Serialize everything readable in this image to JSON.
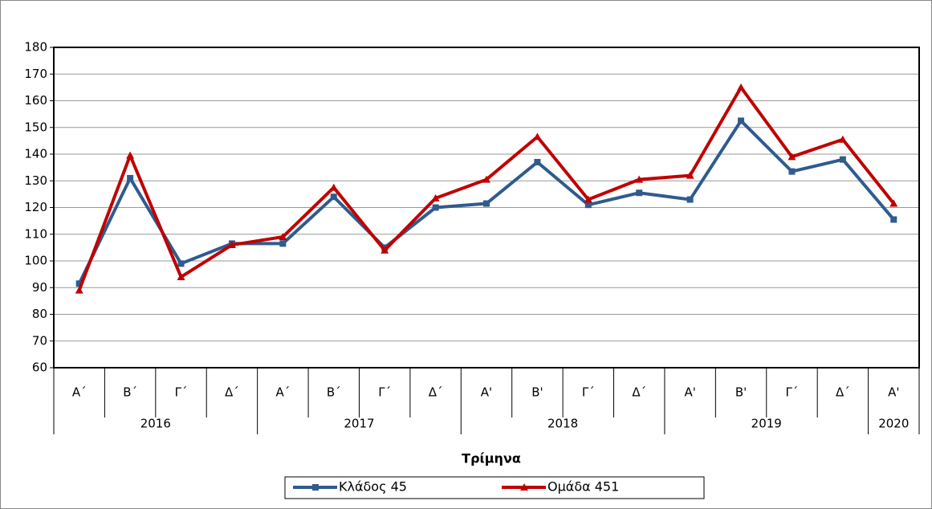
{
  "chart_data": {
    "type": "line",
    "x_title": "Τρίμηνα",
    "categories": [
      "Α΄",
      "Β΄",
      "Γ΄",
      "Δ΄",
      "Α΄",
      "Β΄",
      "Γ΄",
      "Δ΄",
      "Α'",
      "Β'",
      "Γ΄",
      "Δ΄",
      "Α'",
      "Β'",
      "Γ΄",
      "Δ΄",
      "Α'"
    ],
    "year_groups": [
      {
        "label": "2016",
        "count": 4
      },
      {
        "label": "2017",
        "count": 4
      },
      {
        "label": "2018",
        "count": 4
      },
      {
        "label": "2019",
        "count": 4
      },
      {
        "label": "2020",
        "count": 1
      }
    ],
    "series": [
      {
        "name": "Κλάδος 45",
        "color": "#2f5b8e",
        "marker": "square",
        "values": [
          91.5,
          131,
          99,
          106.5,
          106.5,
          124,
          105,
          120,
          121.5,
          137,
          121,
          125.5,
          123,
          152.5,
          133.5,
          138,
          115.5
        ]
      },
      {
        "name": "Ομάδα 451",
        "color": "#c00000",
        "marker": "triangle",
        "values": [
          89,
          139.5,
          94,
          106,
          109,
          127.5,
          104,
          123.5,
          130.5,
          146.5,
          123,
          130.5,
          132,
          165,
          139,
          145.5,
          121.5
        ]
      }
    ],
    "ylim": [
      60,
      180
    ],
    "yticks": [
      60,
      70,
      80,
      90,
      100,
      110,
      120,
      130,
      140,
      150,
      160,
      170,
      180
    ],
    "grid": true,
    "legend": "bottom"
  }
}
